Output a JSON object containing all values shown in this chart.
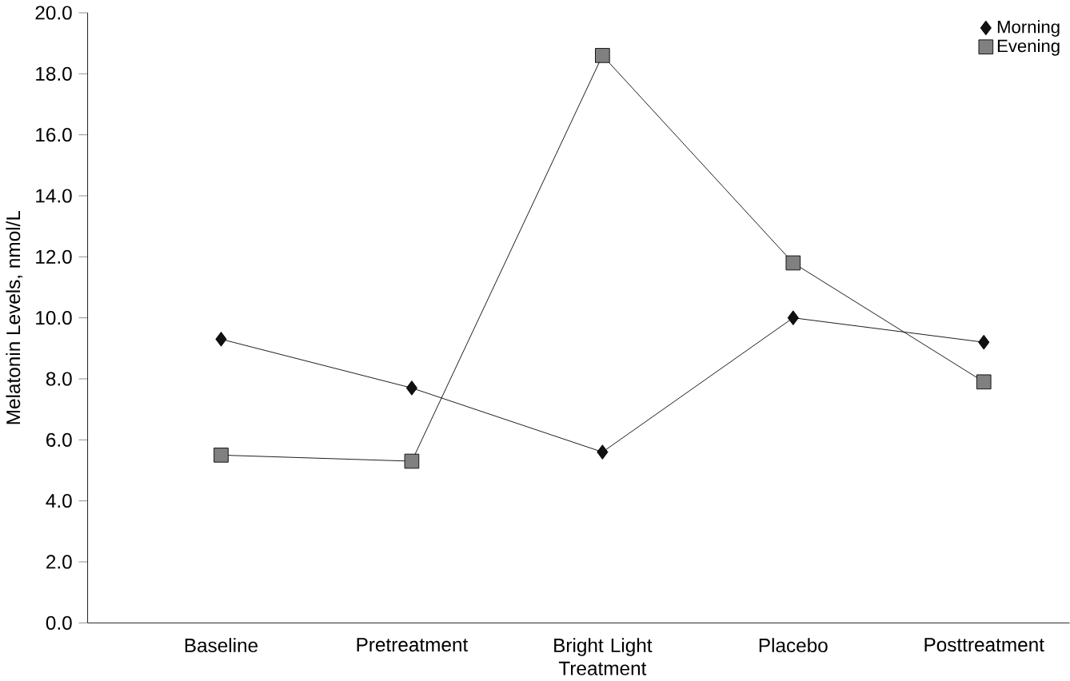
{
  "chart_data": {
    "type": "line",
    "ylabel": "Melatonin Levels, nmol/L",
    "categories": [
      "Baseline",
      "Pretreatment",
      "Bright Light Treatment",
      "Placebo",
      "Posttreatment"
    ],
    "series": [
      {
        "name": "Morning",
        "color": "#111111",
        "marker": "diamond",
        "values": [
          9.3,
          7.7,
          5.6,
          10.0,
          9.2
        ]
      },
      {
        "name": "Evening",
        "color": "#808080",
        "marker": "square",
        "values": [
          5.5,
          5.3,
          18.6,
          11.8,
          7.9
        ]
      }
    ],
    "ylim": [
      0,
      20
    ],
    "yticks": [
      {
        "value": 0,
        "label": "0.0"
      },
      {
        "value": 2,
        "label": "2.0"
      },
      {
        "value": 4,
        "label": "4.0"
      },
      {
        "value": 6,
        "label": "6.0"
      },
      {
        "value": 8,
        "label": "8.0"
      },
      {
        "value": 10,
        "label": "10.0"
      },
      {
        "value": 12,
        "label": "12.0"
      },
      {
        "value": 14,
        "label": "14.0"
      },
      {
        "value": 16,
        "label": "16.0"
      },
      {
        "value": 18,
        "label": "18.0"
      },
      {
        "value": 20,
        "label": "20.0"
      }
    ],
    "grid": false,
    "legend": "top right",
    "line_style": "solid"
  }
}
